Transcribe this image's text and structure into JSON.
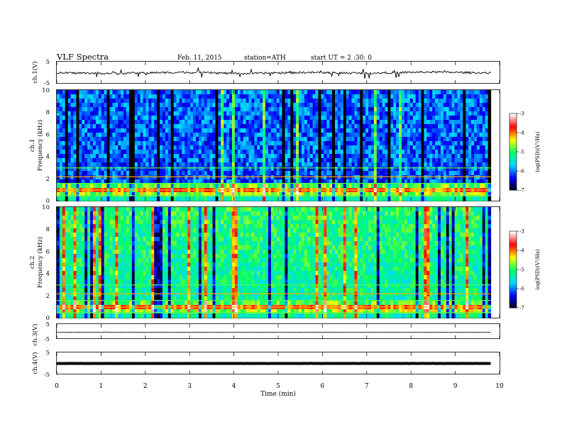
{
  "header": {
    "title": "VLF  Spectra",
    "date": "Feb. 11, 2015",
    "station": "station=ATH",
    "start": "start  UT =   2  :30: 0"
  },
  "colors": {
    "colormap": [
      "#000000",
      "#0000ff",
      "#00d8ff",
      "#00ff66",
      "#ffff00",
      "#ff0000",
      "#ffffff"
    ],
    "trace": "#000000",
    "frame": "#000000"
  },
  "chart_data": [
    {
      "type": "line",
      "panel": "ch1-waveform",
      "ylabel": "ch.1(V)",
      "ylim": [
        -5,
        5
      ],
      "yticks": [
        "5",
        "-5"
      ],
      "x_range": [
        0,
        9.8
      ],
      "series": [
        {
          "values": [
            -0.1,
            -0.3,
            0.2,
            -0.4,
            0.1,
            -0.2,
            0.3,
            -0.1
          ]
        }
      ]
    },
    {
      "type": "heatmap",
      "panel": "ch1-spectrogram",
      "ylabel": "ch.1\nFrequency (kHz)",
      "ylabel_line1": "ch.1",
      "ylabel_line2": "Frequency (kHz)",
      "ylim": [
        0,
        10
      ],
      "yticks": [
        "0",
        "2",
        "4",
        "6",
        "8",
        "10"
      ],
      "colorbar": {
        "label": "log(PSD)(V²/Hz)",
        "range": [
          -7,
          -3
        ],
        "ticks": [
          "-3",
          "-4",
          "-5",
          "-6",
          "-7"
        ]
      }
    },
    {
      "type": "heatmap",
      "panel": "ch2-spectrogram",
      "ylabel": "ch.2\nFrequency (kHz)",
      "ylabel_line1": "ch.2",
      "ylabel_line2": "Frequency (kHz)",
      "ylim": [
        0,
        10
      ],
      "yticks": [
        "0",
        "2",
        "4",
        "6",
        "8",
        "10"
      ],
      "colorbar": {
        "label": "log(PSD)(V²/Hz)",
        "range": [
          -7,
          -3
        ],
        "ticks": [
          "-3",
          "-4",
          "-5",
          "-6",
          "-7"
        ]
      }
    },
    {
      "type": "line",
      "panel": "ch3-waveform",
      "ylabel": "ch.3(V)",
      "ylim": [
        -5,
        5
      ],
      "yticks": [
        "5",
        "-5"
      ],
      "x_range": [
        0,
        9.8
      ],
      "series": [
        {
          "values": [
            -0.5,
            -0.5,
            -0.5,
            -0.5
          ]
        }
      ]
    },
    {
      "type": "line",
      "panel": "ch4-waveform",
      "ylabel": "ch.4(V)",
      "ylim": [
        -5,
        5
      ],
      "yticks": [
        "5",
        "-5"
      ],
      "x_range": [
        0,
        9.8
      ],
      "series": [
        {
          "values": [
            0,
            0,
            0,
            0
          ]
        }
      ]
    }
  ],
  "x_axis": {
    "label": "Time  (min)",
    "range": [
      0,
      10
    ],
    "ticks": [
      "0",
      "1",
      "2",
      "3",
      "4",
      "5",
      "6",
      "7",
      "8",
      "9",
      "10"
    ]
  }
}
